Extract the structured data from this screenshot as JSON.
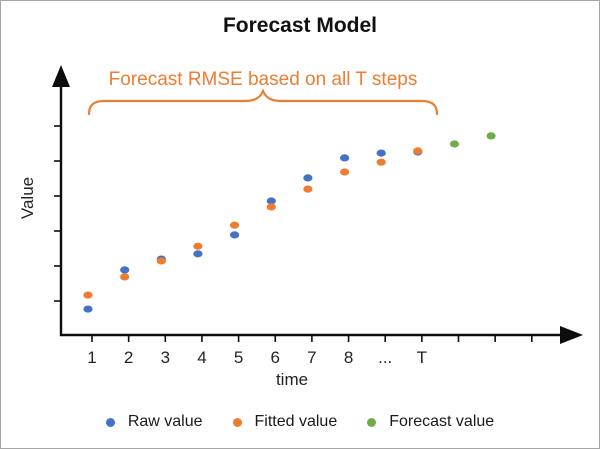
{
  "title": "Forecast Model",
  "annotation": {
    "text": "Forecast RMSE based on all T steps",
    "color": "#ED7D31"
  },
  "axes": {
    "x_label": "time",
    "y_label": "Value",
    "x_tick_labels": [
      "1",
      "2",
      "3",
      "4",
      "5",
      "6",
      "7",
      "8",
      "...",
      "T"
    ],
    "x_tick_count": 13,
    "y_tick_count": 6
  },
  "legend": [
    {
      "label": "Raw value",
      "color": "#4472C4"
    },
    {
      "label": "Fitted value",
      "color": "#ED7D31"
    },
    {
      "label": "Forecast value",
      "color": "#70AD47"
    }
  ],
  "palette": {
    "axis": "#0D0D0D",
    "tick_text": "#262626",
    "border": "#A6A6A6",
    "brace": "#ED7D31"
  },
  "chart_data": {
    "type": "scatter",
    "title": "Forecast Model",
    "xlabel": "time",
    "ylabel": "Value",
    "x_categories": [
      "1",
      "2",
      "3",
      "4",
      "5",
      "6",
      "7",
      "8",
      "...",
      "T"
    ],
    "grid": false,
    "legend_position": "bottom",
    "annotation": "Forecast RMSE based on all T steps (overbrace spans steps 1 through T)",
    "series": [
      {
        "name": "Raw value",
        "color": "#4472C4",
        "points": [
          [
            1,
            0.71
          ],
          [
            2,
            1.83
          ],
          [
            3,
            2.14
          ],
          [
            4,
            2.29
          ],
          [
            5,
            2.83
          ],
          [
            6,
            3.8
          ],
          [
            7,
            4.46
          ],
          [
            8,
            5.03
          ],
          [
            9,
            5.17
          ],
          [
            10,
            5.2
          ]
        ]
      },
      {
        "name": "Fitted value",
        "color": "#ED7D31",
        "points": [
          [
            1,
            1.11
          ],
          [
            2,
            1.63
          ],
          [
            3,
            2.09
          ],
          [
            4,
            2.51
          ],
          [
            5,
            3.11
          ],
          [
            6,
            3.63
          ],
          [
            7,
            4.14
          ],
          [
            8,
            4.63
          ],
          [
            9,
            4.91
          ],
          [
            10,
            5.23
          ]
        ]
      },
      {
        "name": "Forecast value",
        "color": "#70AD47",
        "points": [
          [
            11,
            5.43
          ],
          [
            12,
            5.66
          ]
        ]
      }
    ],
    "value_axis_note": "Value axis unlabeled; values are in y-tick units (1 unit = 1 tick spacing) above the x-axis"
  }
}
